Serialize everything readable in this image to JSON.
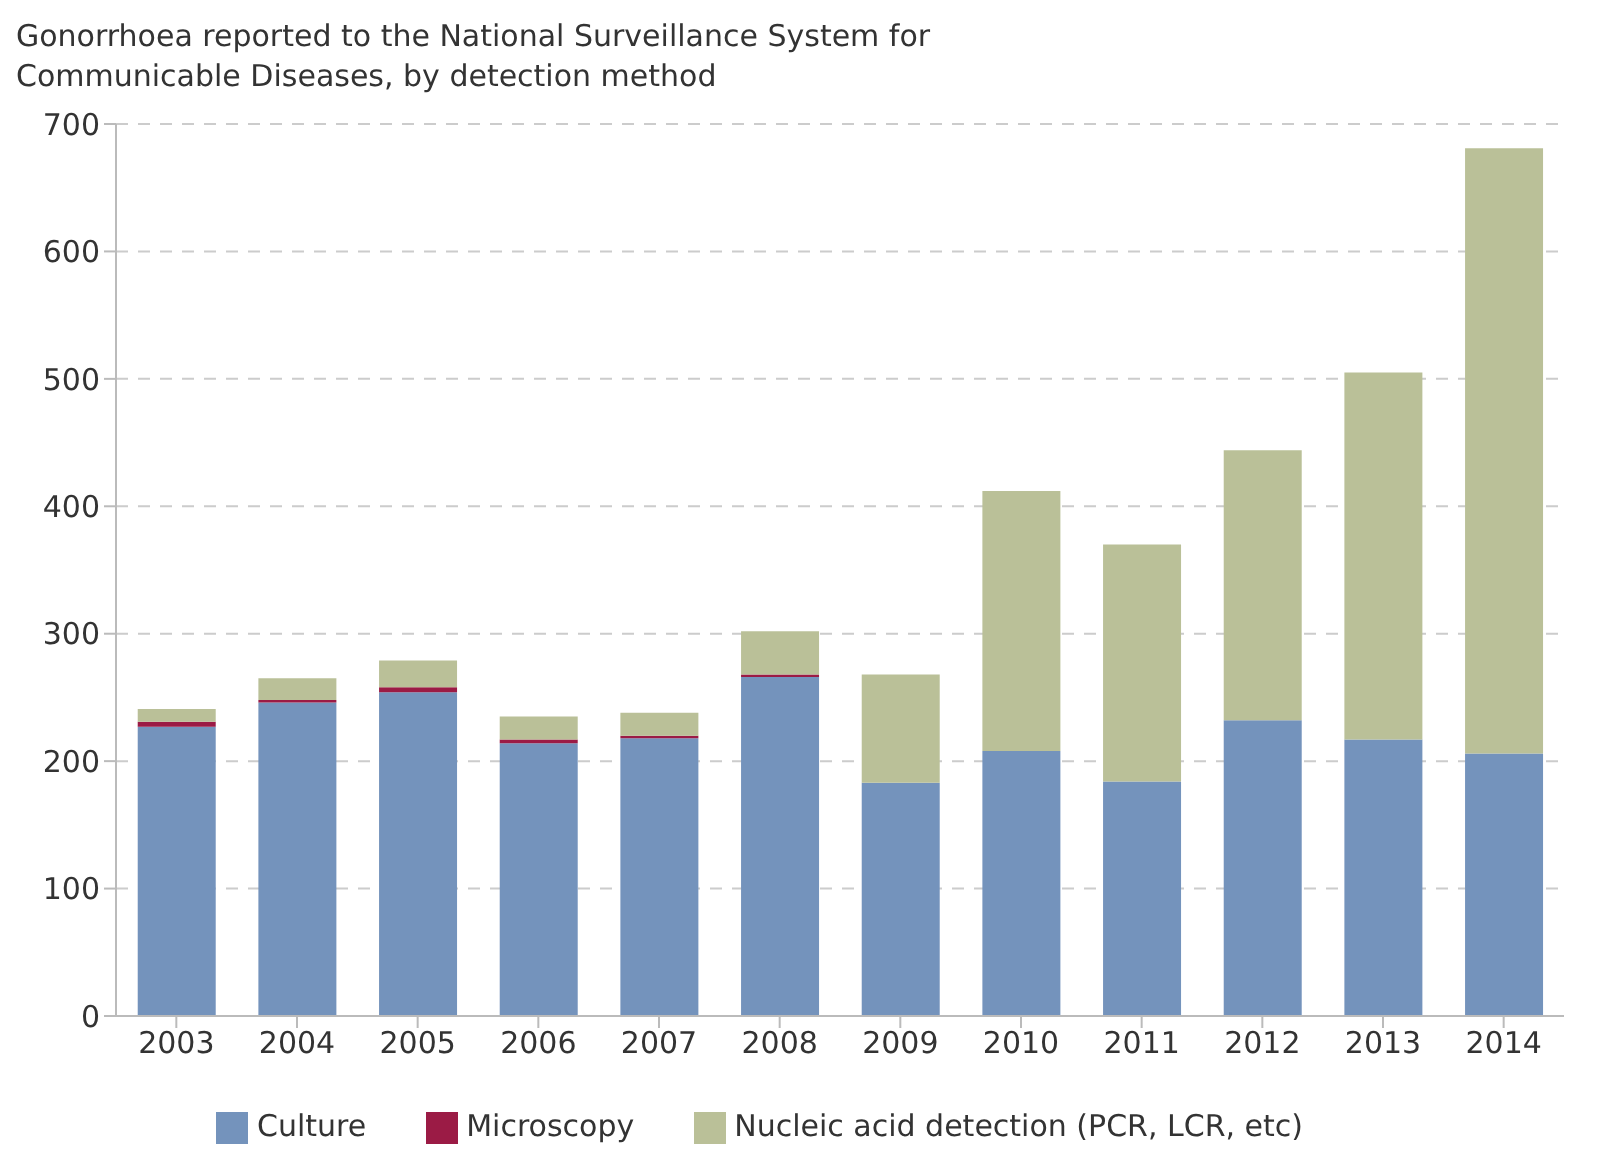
{
  "chart_data": {
    "type": "bar",
    "title": "Gonorrhoea reported to the National Surveillance System for Communicable Diseases, by detection method",
    "categories": [
      "2003",
      "2004",
      "2005",
      "2006",
      "2007",
      "2008",
      "2009",
      "2010",
      "2011",
      "2012",
      "2013",
      "2014"
    ],
    "stacked": true,
    "series": [
      {
        "name": "Culture",
        "color": "#7493bc",
        "values": [
          227,
          246,
          254,
          214,
          218,
          266,
          183,
          208,
          184,
          232,
          217,
          206
        ]
      },
      {
        "name": "Microscopy",
        "color": "#9b1b45",
        "values": [
          4,
          2,
          4,
          3,
          2,
          2,
          0,
          0,
          0,
          0,
          0,
          0
        ]
      },
      {
        "name": "Nucleic acid detection (PCR, LCR, etc)",
        "color": "#bac098",
        "values": [
          10,
          17,
          21,
          18,
          18,
          34,
          85,
          204,
          186,
          212,
          288,
          475
        ]
      }
    ],
    "ylim": [
      0,
      700
    ],
    "yticks": [
      0,
      100,
      200,
      300,
      400,
      500,
      600,
      700
    ],
    "grid": "y",
    "legend": "bottom"
  }
}
